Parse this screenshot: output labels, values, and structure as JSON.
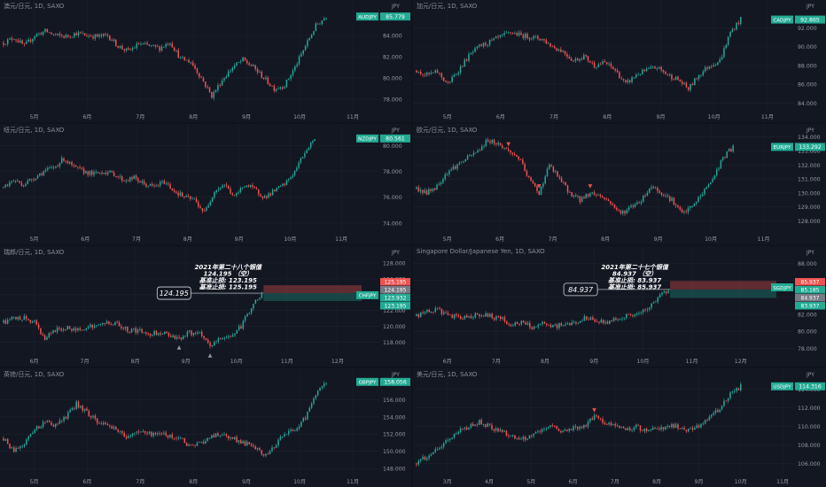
{
  "colors": {
    "up": "#26a69a",
    "down": "#ef5350",
    "accent": "#22ab94",
    "background": "#131722",
    "grid": "#1e2330",
    "text": "#8a8f9c"
  },
  "chart_data": [
    {
      "type": "candlestick",
      "title": "澳元/日元, 1D, SAXO",
      "ylabel": "JPY",
      "symbol": "AUDJPY",
      "last_price": "85.779",
      "yticks": [
        "78.000",
        "80.000",
        "82.000",
        "84.000"
      ],
      "ylim": [
        77.0,
        86.5
      ],
      "xticks": [
        "5月",
        "6月",
        "7月",
        "8月",
        "9月",
        "10月",
        "11月"
      ],
      "series": [
        {
          "anchors": [
            83.3,
            83.8,
            83.0,
            84.0,
            84.4,
            84.0,
            83.9,
            84.2,
            84.0,
            83.9,
            84.0,
            83.0,
            82.5,
            83.2,
            83.0,
            82.8,
            83.4,
            81.8,
            81.5,
            80.0,
            78.3,
            79.8,
            81.0,
            81.7,
            81.0,
            80.0,
            79.0,
            79.3,
            81.0,
            83.0,
            84.9,
            85.8
          ],
          "markers": []
        }
      ]
    },
    {
      "type": "candlestick",
      "title": "加元/日元, 1D, SAXO",
      "ylabel": "JPY",
      "symbol": "CADJPY",
      "last_price": "92.865",
      "yticks": [
        "84.000",
        "86.000",
        "88.000",
        "90.000",
        "92.000"
      ],
      "ylim": [
        83.3,
        94.0
      ],
      "xticks": [
        "5月",
        "6月",
        "7月",
        "8月",
        "9月",
        "10月",
        "11月"
      ],
      "series": [
        {
          "anchors": [
            87.5,
            87.0,
            87.3,
            86.0,
            87.5,
            89.0,
            90.0,
            90.5,
            91.0,
            91.5,
            91.2,
            91.0,
            90.8,
            90.0,
            89.5,
            88.5,
            89.0,
            88.0,
            88.3,
            87.5,
            86.0,
            87.0,
            87.5,
            87.8,
            87.0,
            86.5,
            85.5,
            87.0,
            88.0,
            88.5,
            91.5,
            92.9
          ],
          "markers": []
        }
      ]
    },
    {
      "type": "candlestick",
      "title": "纽元/日元, 1D, SAXO",
      "ylabel": "JPY",
      "symbol": "NZDJPY",
      "last_price": "80.561",
      "yticks": [
        "74.000",
        "76.000",
        "78.000",
        "80.000"
      ],
      "ylim": [
        73.3,
        81.0
      ],
      "xticks": [
        "5月",
        "6月",
        "7月",
        "8月",
        "9月",
        "10月",
        "11月"
      ],
      "series": [
        {
          "anchors": [
            76.8,
            77.3,
            77.0,
            77.5,
            78.0,
            78.3,
            79.0,
            78.3,
            78.0,
            77.8,
            78.0,
            77.8,
            77.3,
            77.5,
            77.0,
            76.8,
            77.2,
            76.5,
            76.0,
            75.8,
            74.8,
            76.5,
            77.0,
            76.0,
            77.0,
            76.6,
            76.0,
            76.5,
            77.0,
            78.0,
            79.5,
            80.6
          ],
          "markers": []
        }
      ]
    },
    {
      "type": "candlestick",
      "title": "欧元/日元, 1D, SAXO",
      "ylabel": "JPY",
      "symbol": "EURJPY",
      "last_price": "133.292",
      "yticks": [
        "128.000",
        "129.000",
        "130.000",
        "131.000",
        "132.000",
        "133.000",
        "134.000"
      ],
      "ylim": [
        127.2,
        134.3
      ],
      "xticks": [
        "5月",
        "6月",
        "7月",
        "8月",
        "9月",
        "10月",
        "11月"
      ],
      "series": [
        {
          "anchors": [
            130.3,
            130.0,
            130.5,
            131.5,
            132.0,
            132.5,
            133.0,
            133.8,
            133.5,
            133.0,
            132.5,
            131.0,
            130.0,
            132.0,
            131.0,
            130.0,
            129.5,
            130.0,
            129.8,
            129.3,
            128.5,
            129.0,
            129.5,
            130.5,
            130.0,
            129.5,
            128.5,
            129.0,
            130.0,
            131.0,
            132.5,
            133.3
          ],
          "markers": [
            {
              "index": 9,
              "label": "▼"
            },
            {
              "index": 12,
              "label": "▼"
            },
            {
              "index": 17,
              "label": "▼"
            }
          ]
        }
      ]
    },
    {
      "type": "candlestick",
      "title": "瑞郎/日元, 1D, SAXO",
      "ylabel": "JPY",
      "symbol": "CHFJPY",
      "last_price": "123.932",
      "yticks": [
        "118.000",
        "120.000",
        "122.000",
        "124.000",
        "126.000",
        "128.000"
      ],
      "ylim": [
        116.5,
        129.0
      ],
      "xticks": [
        "6月",
        "7月",
        "8月",
        "9月",
        "10月",
        "11月",
        "12月"
      ],
      "series": [
        {
          "anchors": [
            120.5,
            121.0,
            121.0,
            120.5,
            118.5,
            119.5,
            119.8,
            119.5,
            120.0,
            120.0,
            120.5,
            120.3,
            119.5,
            119.5,
            119.0,
            119.3,
            119.0,
            118.5,
            119.2,
            119.0,
            117.5,
            118.5,
            118.8,
            120.0,
            122.5,
            124.0
          ],
          "markers": [
            {
              "index": 17,
              "label": "▲"
            },
            {
              "index": 20,
              "label": "▲"
            }
          ]
        }
      ],
      "annotation": {
        "lines": [
          "2021年第二十八个银值",
          "124.195 （空）",
          "基准止损: 123.195",
          "基准止损: 125.195"
        ],
        "bubble_value": "124.195",
        "zone_top": 125.195,
        "entry": 124.195,
        "zone_bottom": 123.195
      },
      "price_labels": [
        {
          "value": "125.195",
          "color": "#ef5350"
        },
        {
          "value": "124.195",
          "color": "#787b86"
        },
        {
          "value": "123.932",
          "color": "#22ab94"
        },
        {
          "value": "123.195",
          "color": "#22ab94"
        }
      ]
    },
    {
      "type": "candlestick",
      "title": "Singapore Dollar/Japanese Yen, 1D, SAXO",
      "ylabel": "JPY",
      "symbol": "SGDJPY",
      "last_price": "85.185",
      "yticks": [
        "78.000",
        "80.000",
        "82.000",
        "84.000",
        "86.000",
        "88.000"
      ],
      "ylim": [
        77.3,
        89.0
      ],
      "xticks": [
        "6月",
        "7月",
        "8月",
        "9月",
        "10月",
        "11月",
        "12月"
      ],
      "series": [
        {
          "anchors": [
            81.8,
            82.3,
            82.5,
            82.0,
            81.5,
            81.8,
            82.0,
            81.8,
            81.5,
            80.8,
            81.0,
            80.5,
            80.8,
            80.5,
            80.8,
            81.0,
            81.5,
            81.3,
            81.0,
            81.5,
            81.8,
            82.0,
            82.5,
            84.0,
            85.0
          ],
          "markers": []
        }
      ],
      "annotation": {
        "lines": [
          "2021年第二十七个银值",
          "84.937 （空）",
          "基准止损: 83.937",
          "基准止损: 85.937"
        ],
        "bubble_value": "84.937",
        "zone_top": 85.937,
        "entry": 84.937,
        "zone_bottom": 83.937
      },
      "price_labels": [
        {
          "value": "85.937",
          "color": "#ef5350"
        },
        {
          "value": "85.185",
          "color": "#22ab94"
        },
        {
          "value": "84.937",
          "color": "#787b86"
        },
        {
          "value": "83.937",
          "color": "#22ab94"
        }
      ]
    },
    {
      "type": "candlestick",
      "title": "英镑/日元, 1D, SAXO",
      "ylabel": "JPY",
      "symbol": "GBPJPY",
      "last_price": "158.056",
      "yticks": [
        "148.000",
        "150.000",
        "152.000",
        "154.000",
        "156.000"
      ],
      "ylim": [
        147.3,
        158.6
      ],
      "xticks": [
        "5月",
        "6月",
        "7月",
        "8月",
        "9月",
        "10月",
        "11月"
      ],
      "series": [
        {
          "anchors": [
            151.5,
            150.0,
            151.0,
            152.5,
            153.5,
            153.0,
            154.0,
            155.5,
            154.5,
            153.5,
            153.0,
            152.5,
            151.5,
            152.5,
            152.0,
            152.0,
            151.8,
            151.5,
            150.5,
            151.0,
            151.8,
            152.0,
            151.5,
            151.0,
            150.5,
            149.5,
            150.5,
            152.0,
            152.5,
            154.0,
            156.5,
            158.0
          ],
          "markers": []
        }
      ]
    },
    {
      "type": "candlestick",
      "title": "美元/日元, 1D, SAXO",
      "ylabel": "JPY",
      "symbol": "USDJPY",
      "last_price": "114.316",
      "yticks": [
        "106.000",
        "108.000",
        "110.000",
        "112.000",
        "114.000"
      ],
      "ylim": [
        104.8,
        115.3
      ],
      "xticks": [
        "3月",
        "4月",
        "5月",
        "6月",
        "7月",
        "8月",
        "9月",
        "10月",
        "11月"
      ],
      "series": [
        {
          "anchors": [
            106.0,
            106.8,
            107.5,
            108.5,
            109.5,
            110.0,
            110.5,
            110.0,
            109.5,
            109.0,
            108.5,
            109.0,
            109.5,
            110.0,
            109.5,
            109.8,
            110.0,
            111.0,
            110.5,
            110.0,
            109.5,
            110.0,
            109.5,
            109.8,
            110.0,
            110.0,
            109.5,
            110.0,
            111.0,
            112.0,
            113.5,
            114.3
          ],
          "markers": [
            {
              "index": 17,
              "label": "▼"
            }
          ]
        }
      ]
    }
  ]
}
